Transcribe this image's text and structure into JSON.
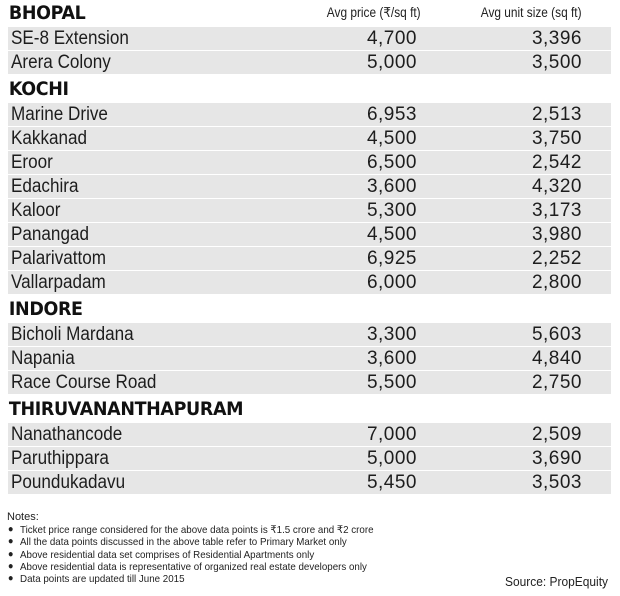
{
  "columns": {
    "price": "Avg price (₹/sq ft)",
    "size": "Avg unit size (sq ft)"
  },
  "sections": [
    {
      "city": "BHOPAL",
      "rows": [
        {
          "name": "SE-8 Extension",
          "price": "4,700",
          "size": "3,396"
        },
        {
          "name": "Arera Colony",
          "price": "5,000",
          "size": "3,500"
        }
      ]
    },
    {
      "city": "KOCHI",
      "rows": [
        {
          "name": "Marine Drive",
          "price": "6,953",
          "size": "2,513"
        },
        {
          "name": "Kakkanad",
          "price": "4,500",
          "size": "3,750"
        },
        {
          "name": "Eroor",
          "price": "6,500",
          "size": "2,542"
        },
        {
          "name": "Edachira",
          "price": "3,600",
          "size": "4,320"
        },
        {
          "name": "Kaloor",
          "price": "5,300",
          "size": "3,173"
        },
        {
          "name": "Panangad",
          "price": "4,500",
          "size": "3,980"
        },
        {
          "name": "Palarivattom",
          "price": "6,925",
          "size": "2,252"
        },
        {
          "name": "Vallarpadam",
          "price": "6,000",
          "size": "2,800"
        }
      ]
    },
    {
      "city": "INDORE",
      "rows": [
        {
          "name": "Bicholi Mardana",
          "price": "3,300",
          "size": "5,603"
        },
        {
          "name": "Napania",
          "price": "3,600",
          "size": "4,840"
        },
        {
          "name": "Race Course Road",
          "price": "5,500",
          "size": "2,750"
        }
      ]
    },
    {
      "city": "THIRUVANANTHAPURAM",
      "rows": [
        {
          "name": "Nanathancode",
          "price": "7,000",
          "size": "2,509"
        },
        {
          "name": "Paruthippara",
          "price": "5,000",
          "size": "3,690"
        },
        {
          "name": "Poundukadavu",
          "price": "5,450",
          "size": "3,503"
        }
      ]
    }
  ],
  "notes": {
    "title": "Notes:",
    "bullet": "●",
    "items": [
      "Ticket price range considered for the above data points is ₹1.5 crore and ₹2 crore",
      "All the data points discussed in the above table refer to Primary Market only",
      " Above residential data set comprises of Residential Apartments only",
      "Above residential data is representative of organized real estate developers only",
      "Data points are updated till June 2015"
    ]
  },
  "source": "Source: PropEquity",
  "colors": {
    "row_background": "#e6e6e6",
    "row_separator": "#ffffff",
    "text": "#1d1d1d"
  }
}
